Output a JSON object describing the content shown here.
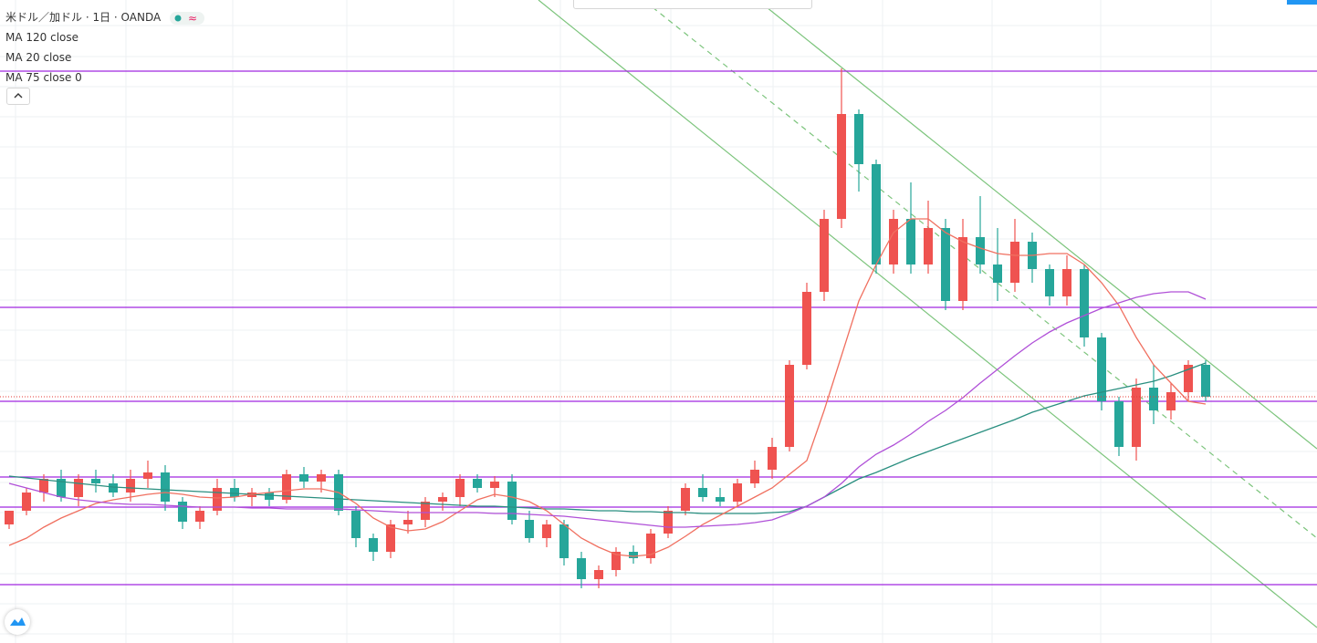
{
  "chart_data": {
    "type": "candlestick",
    "title": "米ドル／加ドル · 1日 · OANDA",
    "ylim": [
      1.28,
      1.49
    ],
    "up_color": "#ef5350",
    "down_color": "#26a69a",
    "open": [
      1.3175,
      1.322,
      1.328,
      1.3325,
      1.3265,
      1.3325,
      1.331,
      1.328,
      1.3325,
      1.3346,
      1.325,
      1.3184,
      1.322,
      1.3295,
      1.3265,
      1.328,
      1.3256,
      1.334,
      1.3316,
      1.334,
      1.322,
      1.313,
      1.3085,
      1.3175,
      1.319,
      1.325,
      1.3265,
      1.3325,
      1.3295,
      1.3316,
      1.319,
      1.313,
      1.3175,
      1.3064,
      1.2995,
      1.3025,
      1.3085,
      1.3064,
      1.3145,
      1.322,
      1.3295,
      1.3265,
      1.325,
      1.331,
      1.3355,
      1.343,
      1.37,
      1.394,
      1.418,
      1.4525,
      1.436,
      1.403,
      1.418,
      1.403,
      1.415,
      1.391,
      1.412,
      1.403,
      1.397,
      1.4105,
      1.4015,
      1.3925,
      1.4015,
      1.379,
      1.358,
      1.343,
      1.3625,
      1.355,
      1.361,
      1.37
    ],
    "high": [
      1.322,
      1.3295,
      1.334,
      1.3355,
      1.334,
      1.3355,
      1.334,
      1.3355,
      1.3385,
      1.337,
      1.3265,
      1.3235,
      1.3325,
      1.3325,
      1.3295,
      1.3295,
      1.3355,
      1.3364,
      1.3355,
      1.3355,
      1.3235,
      1.3145,
      1.319,
      1.322,
      1.3265,
      1.328,
      1.334,
      1.334,
      1.3334,
      1.334,
      1.322,
      1.319,
      1.319,
      1.3085,
      1.304,
      1.31,
      1.3106,
      1.316,
      1.3235,
      1.331,
      1.334,
      1.3295,
      1.3325,
      1.3385,
      1.346,
      1.3715,
      1.397,
      1.421,
      1.4675,
      1.454,
      1.4375,
      1.421,
      1.43,
      1.424,
      1.418,
      1.418,
      1.4255,
      1.415,
      1.418,
      1.4135,
      1.403,
      1.406,
      1.403,
      1.3805,
      1.3595,
      1.3655,
      1.37,
      1.364,
      1.3715,
      1.3715
    ],
    "low": [
      1.316,
      1.3205,
      1.325,
      1.325,
      1.3235,
      1.328,
      1.3265,
      1.325,
      1.3295,
      1.322,
      1.316,
      1.316,
      1.3205,
      1.325,
      1.3235,
      1.3235,
      1.3244,
      1.3295,
      1.328,
      1.3205,
      1.31,
      1.3055,
      1.3064,
      1.3145,
      1.3166,
      1.322,
      1.3235,
      1.328,
      1.3265,
      1.3175,
      1.3115,
      1.31,
      1.304,
      1.2965,
      1.2965,
      1.3004,
      1.3046,
      1.3046,
      1.313,
      1.3205,
      1.325,
      1.3235,
      1.3232,
      1.3295,
      1.3325,
      1.3415,
      1.3685,
      1.391,
      1.415,
      1.427,
      1.4,
      1.4,
      1.4,
      1.4,
      1.388,
      1.388,
      1.4,
      1.391,
      1.394,
      1.397,
      1.3895,
      1.3895,
      1.376,
      1.355,
      1.34,
      1.3385,
      1.3505,
      1.352,
      1.358,
      1.358
    ],
    "close": [
      1.322,
      1.328,
      1.3325,
      1.3265,
      1.3325,
      1.331,
      1.328,
      1.3325,
      1.3346,
      1.325,
      1.3184,
      1.322,
      1.3295,
      1.3265,
      1.328,
      1.3256,
      1.334,
      1.3316,
      1.334,
      1.322,
      1.313,
      1.3085,
      1.3175,
      1.319,
      1.325,
      1.3265,
      1.3325,
      1.3295,
      1.3316,
      1.319,
      1.313,
      1.3175,
      1.3064,
      1.2995,
      1.3025,
      1.3085,
      1.3064,
      1.3145,
      1.322,
      1.3295,
      1.3265,
      1.325,
      1.331,
      1.3355,
      1.343,
      1.37,
      1.394,
      1.418,
      1.4525,
      1.436,
      1.403,
      1.418,
      1.403,
      1.415,
      1.391,
      1.412,
      1.403,
      1.397,
      1.4105,
      1.4015,
      1.3925,
      1.4015,
      1.379,
      1.358,
      1.343,
      1.3625,
      1.355,
      1.361,
      1.37,
      1.3595
    ],
    "series": [
      {
        "name": "MA 120 close",
        "color": "#2a8f80",
        "values": [
          1.3334,
          1.3328,
          1.3322,
          1.3316,
          1.331,
          1.3304,
          1.3298,
          1.3295,
          1.3292,
          1.3289,
          1.3286,
          1.3283,
          1.328,
          1.3277,
          1.3274,
          1.3271,
          1.3268,
          1.3265,
          1.3262,
          1.3259,
          1.3256,
          1.3253,
          1.325,
          1.3247,
          1.3244,
          1.3241,
          1.3238,
          1.3235,
          1.3235,
          1.3232,
          1.3229,
          1.3226,
          1.3226,
          1.3223,
          1.322,
          1.322,
          1.3217,
          1.3217,
          1.3214,
          1.3214,
          1.3211,
          1.3211,
          1.3211,
          1.3211,
          1.3214,
          1.3217,
          1.3235,
          1.3265,
          1.3295,
          1.3325,
          1.3346,
          1.337,
          1.3394,
          1.3415,
          1.3436,
          1.3457,
          1.3478,
          1.3499,
          1.352,
          1.3544,
          1.3562,
          1.358,
          1.3598,
          1.361,
          1.3622,
          1.3634,
          1.3646,
          1.3664,
          1.3685,
          1.3706
        ]
      },
      {
        "name": "MA 20 close",
        "color": "#f07060",
        "values": [
          1.3106,
          1.313,
          1.3166,
          1.3196,
          1.322,
          1.3244,
          1.3256,
          1.3265,
          1.3274,
          1.328,
          1.3274,
          1.3265,
          1.3262,
          1.3265,
          1.3274,
          1.328,
          1.3286,
          1.3292,
          1.3292,
          1.328,
          1.3244,
          1.3196,
          1.3166,
          1.3154,
          1.316,
          1.3184,
          1.322,
          1.3256,
          1.3274,
          1.3265,
          1.325,
          1.322,
          1.3175,
          1.313,
          1.31,
          1.3076,
          1.307,
          1.3076,
          1.31,
          1.3136,
          1.3175,
          1.3205,
          1.3235,
          1.3265,
          1.3295,
          1.334,
          1.3385,
          1.355,
          1.373,
          1.391,
          1.403,
          1.4135,
          1.418,
          1.418,
          1.4135,
          1.4105,
          1.4084,
          1.4066,
          1.406,
          1.406,
          1.4066,
          1.4066,
          1.403,
          1.397,
          1.3895,
          1.379,
          1.37,
          1.364,
          1.358,
          1.3571
        ]
      },
      {
        "name": "MA 75 close 0",
        "color": "#b050d8",
        "values": [
          1.331,
          1.3295,
          1.328,
          1.3265,
          1.3256,
          1.325,
          1.3244,
          1.3241,
          1.3241,
          1.3238,
          1.3235,
          1.3232,
          1.3232,
          1.3232,
          1.3229,
          1.3229,
          1.3226,
          1.3226,
          1.3226,
          1.3226,
          1.3223,
          1.322,
          1.3217,
          1.3214,
          1.3214,
          1.3214,
          1.3214,
          1.3214,
          1.3211,
          1.3211,
          1.3208,
          1.3205,
          1.3202,
          1.3196,
          1.319,
          1.3184,
          1.3178,
          1.3172,
          1.3166,
          1.3166,
          1.3169,
          1.3172,
          1.3175,
          1.3181,
          1.319,
          1.3211,
          1.3235,
          1.3265,
          1.331,
          1.3364,
          1.3406,
          1.3436,
          1.3472,
          1.3514,
          1.355,
          1.3592,
          1.364,
          1.3685,
          1.373,
          1.3772,
          1.3808,
          1.3838,
          1.3862,
          1.3886,
          1.3904,
          1.3922,
          1.3934,
          1.394,
          1.394,
          1.3916
        ]
      }
    ],
    "horizontal_lines": [
      1.4666,
      1.3889,
      1.358,
      1.3331,
      1.3232,
      1.2977
    ],
    "horizontal_line_color": "#a128e0",
    "last_price_color": "#e53935"
  }
}
